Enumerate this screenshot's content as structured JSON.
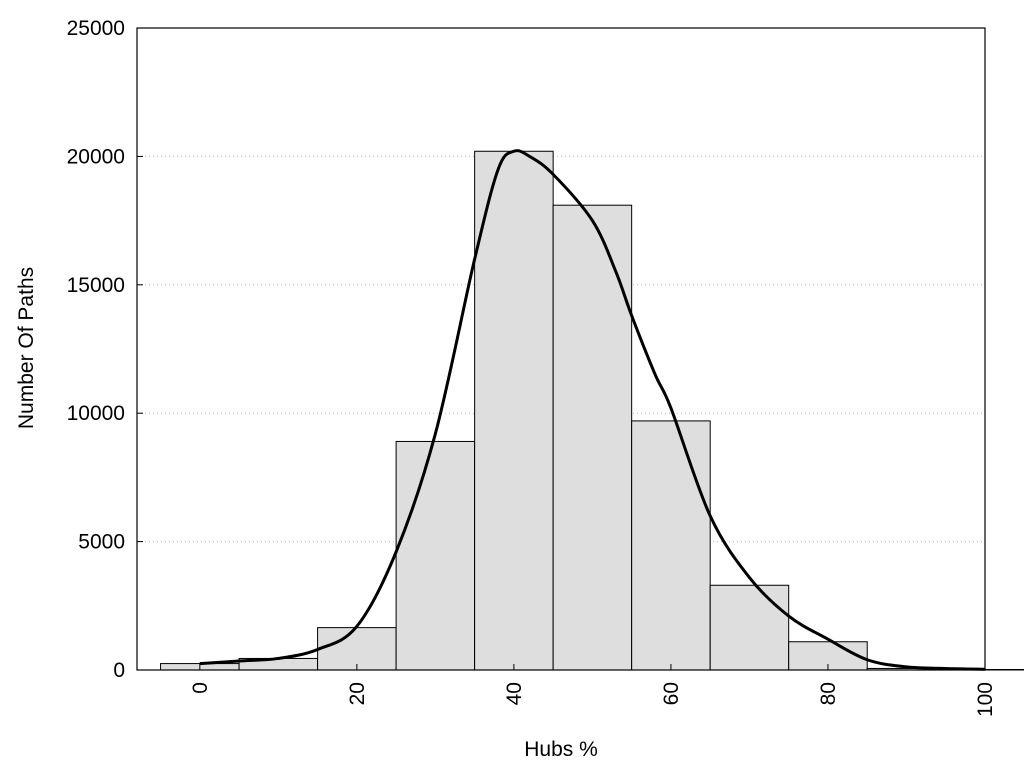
{
  "chart_data": {
    "type": "bar",
    "title": "",
    "xlabel": "Hubs %",
    "ylabel": "Number Of Paths",
    "xlim": [
      -8,
      100
    ],
    "ylim": [
      0,
      25000
    ],
    "xticks": [
      0,
      20,
      40,
      60,
      80,
      100
    ],
    "yticks": [
      0,
      5000,
      10000,
      15000,
      20000,
      25000
    ],
    "grid": "horizontal dotted",
    "bin_width": 10,
    "bins": [
      {
        "center": 0,
        "value": 250
      },
      {
        "center": 10,
        "value": 450
      },
      {
        "center": 20,
        "value": 1650
      },
      {
        "center": 30,
        "value": 8900
      },
      {
        "center": 40,
        "value": 20200
      },
      {
        "center": 50,
        "value": 18100
      },
      {
        "center": 60,
        "value": 9700
      },
      {
        "center": 70,
        "value": 3300
      },
      {
        "center": 80,
        "value": 1100
      },
      {
        "center": 90,
        "value": 60
      },
      {
        "center": 100,
        "value": 20
      }
    ],
    "density_curve": {
      "x": [
        0,
        5,
        10,
        15,
        20,
        25,
        30,
        35,
        38,
        40,
        42,
        45,
        50,
        53,
        55,
        58,
        60,
        65,
        70,
        75,
        80,
        85,
        90,
        95,
        100
      ],
      "y": [
        250,
        350,
        450,
        800,
        1700,
        4600,
        9200,
        16000,
        19500,
        20200,
        20000,
        19300,
        17500,
        15500,
        13800,
        11500,
        10200,
        6000,
        3600,
        2100,
        1200,
        400,
        120,
        60,
        30
      ]
    },
    "colors": {
      "bar_fill": "#dedede",
      "bar_stroke": "#000000",
      "curve": "#000000",
      "grid": "#bbbbbb"
    }
  }
}
